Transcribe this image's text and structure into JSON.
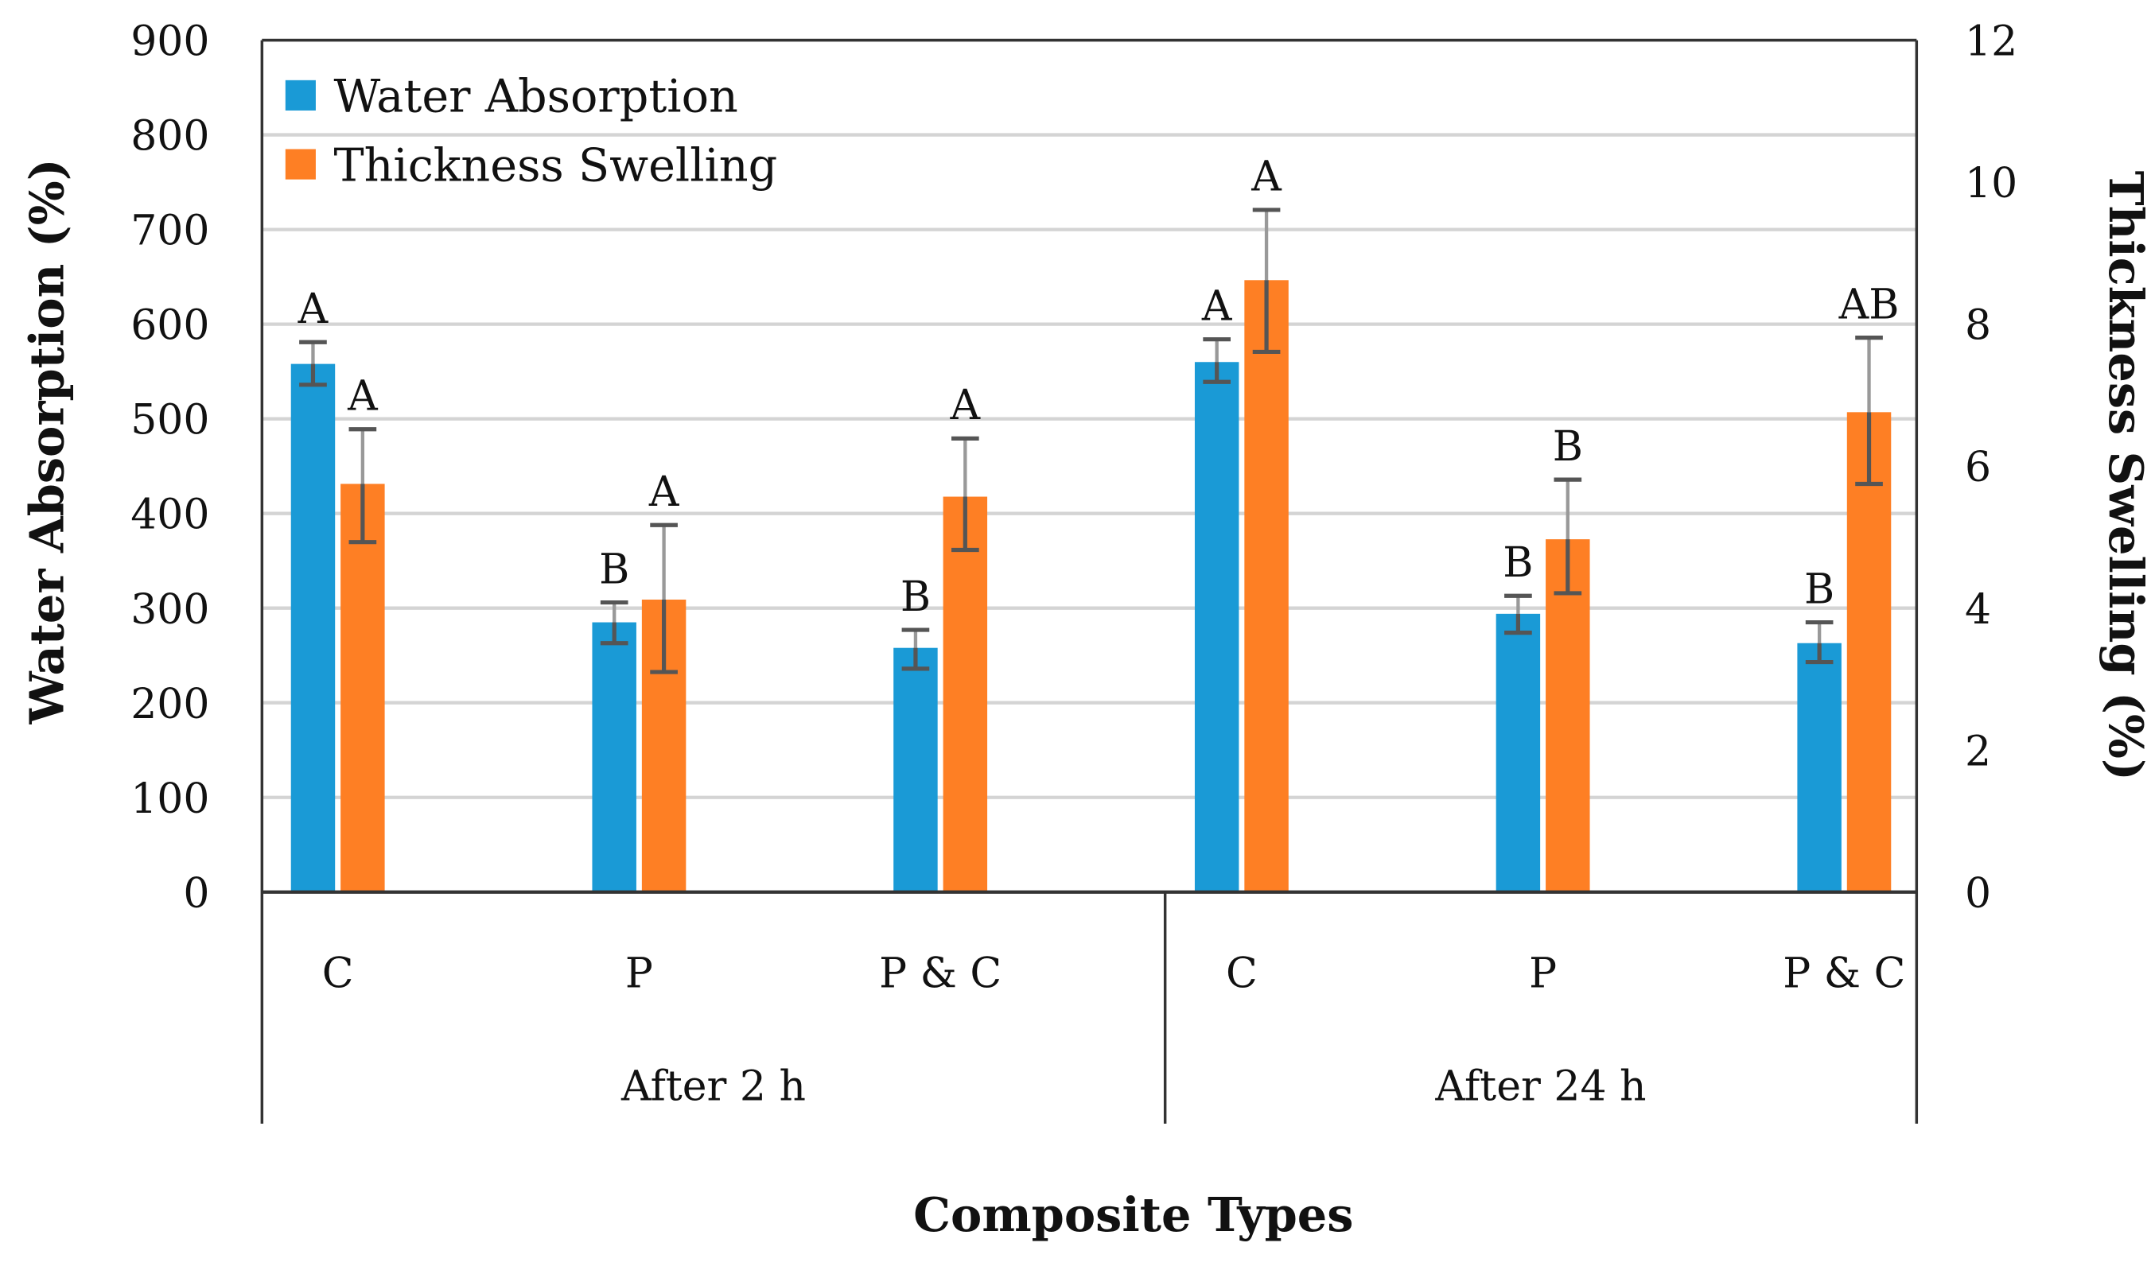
{
  "chart_data": {
    "type": "bar",
    "xlabel": "Composite Types",
    "ylabel": "Water Absorption (%)",
    "y2label": "Thickness Swelling (%)",
    "ylim": [
      0,
      900
    ],
    "y2lim": [
      0,
      12
    ],
    "yticks": [
      "0",
      "100",
      "200",
      "300",
      "400",
      "500",
      "600",
      "700",
      "800",
      "900"
    ],
    "y2ticks": [
      "0",
      "2",
      "4",
      "6",
      "8",
      "10",
      "12"
    ],
    "grid": true,
    "legend_position": "top-left",
    "groups": [
      {
        "label": "After 2 h",
        "categories": [
          "C",
          "P",
          "P & C"
        ]
      },
      {
        "label": "After 24 h",
        "categories": [
          "C",
          "P",
          "P & C"
        ]
      }
    ],
    "series": [
      {
        "name": "Water Absorption",
        "axis": "left",
        "color": "#1a9ad6",
        "values": [
          558,
          285,
          258,
          560,
          294,
          263
        ],
        "err_low": [
          536,
          263,
          236,
          539,
          274,
          243
        ],
        "err_high": [
          581,
          306,
          277,
          584,
          313,
          285
        ],
        "letters": [
          "A",
          "B",
          "B",
          "A",
          "B",
          "B"
        ]
      },
      {
        "name": "Thickness Swelling",
        "axis": "right",
        "color": "#fe7f24",
        "values": [
          5.75,
          4.12,
          5.57,
          8.62,
          4.97,
          6.76
        ],
        "err_low": [
          4.93,
          3.1,
          4.82,
          7.61,
          4.21,
          5.75
        ],
        "err_high": [
          6.52,
          5.17,
          6.39,
          9.61,
          5.81,
          7.81
        ],
        "letters": [
          "A",
          "A",
          "A",
          "A",
          "B",
          "AB"
        ]
      }
    ]
  }
}
